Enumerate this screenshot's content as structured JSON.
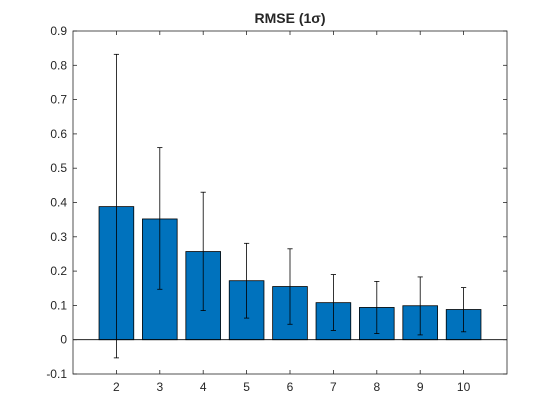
{
  "chart_data": {
    "type": "bar",
    "title": "RMSE (1σ)",
    "xlabel": "",
    "ylabel": "",
    "categories": [
      "2",
      "3",
      "4",
      "5",
      "6",
      "7",
      "8",
      "9",
      "10"
    ],
    "values": [
      0.388,
      0.352,
      0.257,
      0.172,
      0.155,
      0.108,
      0.094,
      0.099,
      0.088
    ],
    "error_low": [
      -0.053,
      0.147,
      0.085,
      0.063,
      0.045,
      0.027,
      0.018,
      0.014,
      0.023
    ],
    "error_high": [
      0.832,
      0.56,
      0.43,
      0.281,
      0.265,
      0.19,
      0.17,
      0.183,
      0.152
    ],
    "xlim": [
      1,
      11
    ],
    "ylim": [
      -0.1,
      0.9
    ],
    "y_ticks": [
      "-0.1",
      "0",
      "0.1",
      "0.2",
      "0.3",
      "0.4",
      "0.5",
      "0.6",
      "0.7",
      "0.8",
      "0.9"
    ],
    "x_ticks": [
      "2",
      "3",
      "4",
      "5",
      "6",
      "7",
      "8",
      "9",
      "10"
    ],
    "grid": false,
    "bar_color": "#0072BD",
    "axis_color": "#262626"
  }
}
